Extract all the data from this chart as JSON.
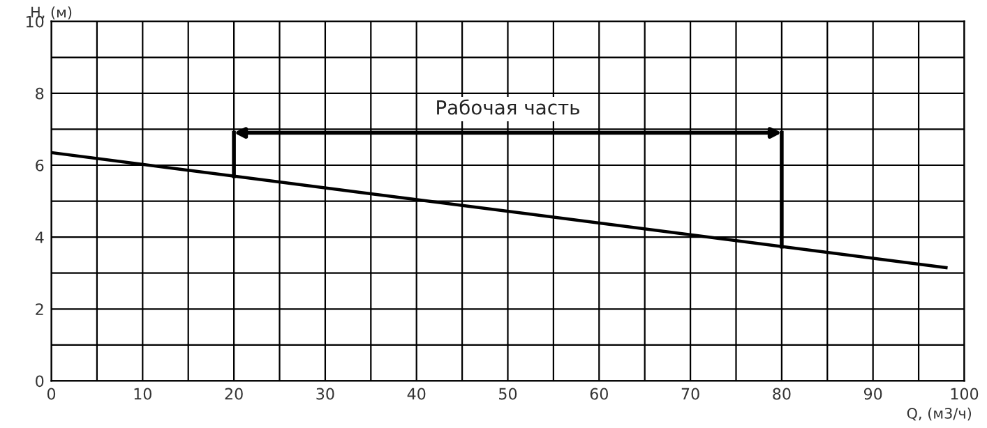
{
  "chart_data": {
    "type": "line",
    "xlabel": "Q, (м3/ч)",
    "ylabel": "H, (м)",
    "series": [
      {
        "color": "#000000",
        "x": [
          0,
          98
        ],
        "values": [
          6.35,
          3.15
        ]
      }
    ],
    "xlim": [
      0,
      100
    ],
    "xticks": [
      0,
      {
        "value": 5,
        "label": null
      },
      10,
      {
        "value": 15,
        "label": null
      },
      20,
      {
        "value": 25,
        "label": null
      },
      30,
      {
        "value": 35,
        "label": null
      },
      40,
      {
        "value": 45,
        "label": null
      },
      50,
      {
        "value": 55,
        "label": null
      },
      60,
      {
        "value": 65,
        "label": null
      },
      70,
      {
        "value": 75,
        "label": null
      },
      80,
      {
        "value": 85,
        "label": null
      },
      90,
      {
        "value": 95,
        "label": null
      },
      100
    ],
    "ylim": [
      0,
      10
    ],
    "yticks": [
      0,
      {
        "value": 1,
        "label": null
      },
      2,
      {
        "value": 3,
        "label": null
      },
      4,
      {
        "value": 5,
        "label": null
      },
      6,
      {
        "value": 7,
        "label": null
      },
      8,
      {
        "value": 9,
        "label": null
      },
      10
    ],
    "grid": true,
    "marker": "none",
    "line_style": "solid",
    "legend": false,
    "ref_lines": [
      {
        "axis": "x",
        "value": 20,
        "color": "#000000"
      },
      {
        "axis": "x",
        "value": 80,
        "color": "#000000"
      }
    ],
    "annotations": [
      "Рабочая часть"
    ]
  }
}
